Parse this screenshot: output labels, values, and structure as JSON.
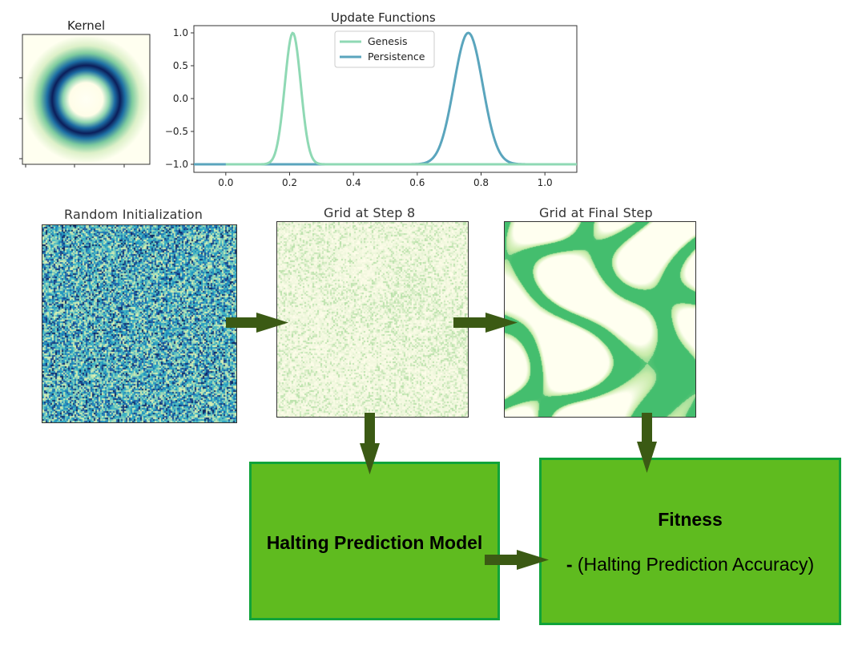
{
  "kernel": {
    "title": "Kernel"
  },
  "chart_data": {
    "type": "line",
    "title": "Update Functions",
    "xlabel": "",
    "ylabel": "",
    "xlim": [
      -0.1,
      1.1
    ],
    "ylim": [
      -1.0,
      1.0
    ],
    "x_ticks": [
      "0.0",
      "0.2",
      "0.4",
      "0.6",
      "0.8",
      "1.0"
    ],
    "y_ticks": [
      "1.0",
      "0.5",
      "0.0",
      "−0.5",
      "−1.0"
    ],
    "series": [
      {
        "name": "Genesis",
        "color": "#8fd9b4",
        "mu": 0.21,
        "sigma": 0.025,
        "x_range": [
          0.0,
          1.1
        ]
      },
      {
        "name": "Persistence",
        "color": "#5aa5bd",
        "mu": 0.76,
        "sigma": 0.045,
        "x_range": [
          -0.1,
          1.1
        ]
      }
    ],
    "legend_position": "top-center"
  },
  "panels": {
    "random": {
      "title": "Random Initialization"
    },
    "step8": {
      "title": "Grid at Step 8"
    },
    "final": {
      "title": "Grid at Final Step"
    }
  },
  "boxes": {
    "halting": {
      "label": "Halting Prediction Model"
    },
    "fitness": {
      "title": "Fitness",
      "minus": "-",
      "formula": "(Halting Prediction Accuracy)"
    }
  },
  "colors": {
    "arrow": "#3b5a14",
    "box_fill": "#5fbb1f",
    "box_border": "#10a33a"
  }
}
